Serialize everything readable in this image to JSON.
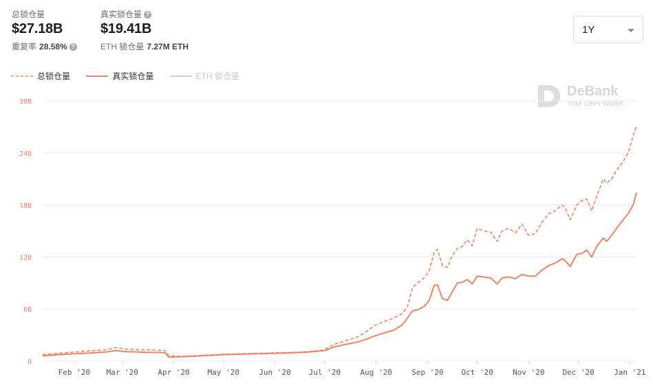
{
  "stats": {
    "total": {
      "label": "总锁仓量",
      "value": "$27.18B",
      "sub_label": "重复率",
      "sub_value": "28.58%"
    },
    "real": {
      "label": "真实锁仓量",
      "value": "$19.41B",
      "sub_label": "ETH 锁仓量",
      "sub_value": "7.27M ETH"
    }
  },
  "period_select": {
    "value": "1Y"
  },
  "watermark": {
    "title": "DeBank",
    "subtitle": "Your DeFi Wallet"
  },
  "chart_data": {
    "type": "line",
    "grid": true,
    "legend_placement": "top-left",
    "ylim": [
      0,
      30
    ],
    "yticks": [
      0,
      6,
      12,
      18,
      24,
      30
    ],
    "ytick_labels": [
      "0",
      "6B",
      "12B",
      "18B",
      "24B",
      "30B"
    ],
    "x_ticks": [
      {
        "label": "Feb '20",
        "day": 19
      },
      {
        "label": "Mar '20",
        "day": 48
      },
      {
        "label": "Apr '20",
        "day": 79
      },
      {
        "label": "May '20",
        "day": 109
      },
      {
        "label": "Jun '20",
        "day": 140
      },
      {
        "label": "Jul '20",
        "day": 170
      },
      {
        "label": "Aug '20",
        "day": 201
      },
      {
        "label": "Sep '20",
        "day": 232
      },
      {
        "label": "Oct '20",
        "day": 262
      },
      {
        "label": "Nov '20",
        "day": 293
      },
      {
        "label": "Dec '20",
        "day": 323
      },
      {
        "label": "Jan '21",
        "day": 354
      }
    ],
    "x_range": [
      0,
      358
    ],
    "series": [
      {
        "name": "总锁仓量",
        "style": "dashed",
        "color": "#ef8367",
        "points": [
          [
            0,
            0.75
          ],
          [
            10,
            0.9
          ],
          [
            20,
            1.05
          ],
          [
            30,
            1.2
          ],
          [
            38,
            1.3
          ],
          [
            44,
            1.55
          ],
          [
            50,
            1.4
          ],
          [
            58,
            1.3
          ],
          [
            64,
            1.3
          ],
          [
            70,
            1.25
          ],
          [
            74,
            1.2
          ],
          [
            76,
            0.6
          ],
          [
            82,
            0.55
          ],
          [
            90,
            0.6
          ],
          [
            100,
            0.7
          ],
          [
            110,
            0.8
          ],
          [
            120,
            0.85
          ],
          [
            130,
            0.9
          ],
          [
            140,
            0.95
          ],
          [
            150,
            1.0
          ],
          [
            160,
            1.1
          ],
          [
            166,
            1.2
          ],
          [
            170,
            1.3
          ],
          [
            175,
            1.9
          ],
          [
            182,
            2.3
          ],
          [
            190,
            2.8
          ],
          [
            196,
            3.5
          ],
          [
            200,
            4.1
          ],
          [
            205,
            4.5
          ],
          [
            212,
            5.0
          ],
          [
            217,
            5.5
          ],
          [
            220,
            6.3
          ],
          [
            223,
            8.5
          ],
          [
            226,
            9.0
          ],
          [
            230,
            9.6
          ],
          [
            233,
            10.4
          ],
          [
            236,
            12.5
          ],
          [
            238,
            12.9
          ],
          [
            241,
            11.0
          ],
          [
            244,
            10.8
          ],
          [
            247,
            12.2
          ],
          [
            250,
            13.0
          ],
          [
            253,
            13.2
          ],
          [
            256,
            14.0
          ],
          [
            259,
            13.3
          ],
          [
            262,
            15.3
          ],
          [
            266,
            15.0
          ],
          [
            270,
            14.9
          ],
          [
            274,
            13.8
          ],
          [
            277,
            15.0
          ],
          [
            281,
            15.3
          ],
          [
            285,
            14.8
          ],
          [
            289,
            15.8
          ],
          [
            293,
            14.5
          ],
          [
            297,
            14.7
          ],
          [
            301,
            16.0
          ],
          [
            305,
            17.0
          ],
          [
            309,
            17.3
          ],
          [
            313,
            18.0
          ],
          [
            315,
            17.7
          ],
          [
            318,
            16.3
          ],
          [
            322,
            18.0
          ],
          [
            325,
            18.5
          ],
          [
            328,
            18.7
          ],
          [
            331,
            17.3
          ],
          [
            334,
            19.0
          ],
          [
            338,
            21.0
          ],
          [
            340,
            20.5
          ],
          [
            343,
            21.0
          ],
          [
            346,
            22.0
          ],
          [
            350,
            23.0
          ],
          [
            353,
            24.0
          ],
          [
            356,
            26.0
          ],
          [
            358,
            27.18
          ]
        ]
      },
      {
        "name": "真实锁仓量",
        "style": "solid",
        "color": "#ef8367",
        "points": [
          [
            0,
            0.6
          ],
          [
            10,
            0.75
          ],
          [
            20,
            0.85
          ],
          [
            30,
            0.95
          ],
          [
            38,
            1.05
          ],
          [
            44,
            1.2
          ],
          [
            50,
            1.1
          ],
          [
            58,
            1.05
          ],
          [
            64,
            1.0
          ],
          [
            70,
            1.0
          ],
          [
            74,
            0.95
          ],
          [
            76,
            0.45
          ],
          [
            82,
            0.5
          ],
          [
            90,
            0.55
          ],
          [
            100,
            0.65
          ],
          [
            110,
            0.75
          ],
          [
            120,
            0.8
          ],
          [
            130,
            0.85
          ],
          [
            140,
            0.9
          ],
          [
            150,
            0.95
          ],
          [
            160,
            1.05
          ],
          [
            166,
            1.15
          ],
          [
            170,
            1.2
          ],
          [
            175,
            1.6
          ],
          [
            182,
            1.9
          ],
          [
            190,
            2.2
          ],
          [
            196,
            2.6
          ],
          [
            200,
            2.9
          ],
          [
            205,
            3.2
          ],
          [
            212,
            3.6
          ],
          [
            217,
            4.2
          ],
          [
            220,
            5.0
          ],
          [
            223,
            5.8
          ],
          [
            226,
            5.9
          ],
          [
            230,
            6.3
          ],
          [
            233,
            7.0
          ],
          [
            236,
            8.7
          ],
          [
            238,
            8.8
          ],
          [
            241,
            7.2
          ],
          [
            244,
            7.0
          ],
          [
            247,
            8.0
          ],
          [
            250,
            9.0
          ],
          [
            253,
            9.1
          ],
          [
            256,
            9.4
          ],
          [
            259,
            8.9
          ],
          [
            262,
            9.8
          ],
          [
            266,
            9.7
          ],
          [
            270,
            9.6
          ],
          [
            274,
            8.9
          ],
          [
            277,
            9.6
          ],
          [
            281,
            9.7
          ],
          [
            285,
            9.5
          ],
          [
            289,
            10.0
          ],
          [
            293,
            9.8
          ],
          [
            297,
            9.8
          ],
          [
            301,
            10.5
          ],
          [
            305,
            11.0
          ],
          [
            309,
            11.3
          ],
          [
            313,
            11.8
          ],
          [
            315,
            11.6
          ],
          [
            318,
            10.9
          ],
          [
            322,
            12.3
          ],
          [
            325,
            12.4
          ],
          [
            328,
            12.8
          ],
          [
            331,
            12.0
          ],
          [
            334,
            13.2
          ],
          [
            338,
            14.2
          ],
          [
            340,
            13.8
          ],
          [
            343,
            14.5
          ],
          [
            346,
            15.3
          ],
          [
            350,
            16.3
          ],
          [
            353,
            17.0
          ],
          [
            356,
            18.0
          ],
          [
            358,
            19.41
          ]
        ]
      },
      {
        "name": "ETH 锁仓量",
        "style": "solid",
        "color": "#cfcfcf",
        "hidden": true,
        "points": []
      }
    ]
  }
}
